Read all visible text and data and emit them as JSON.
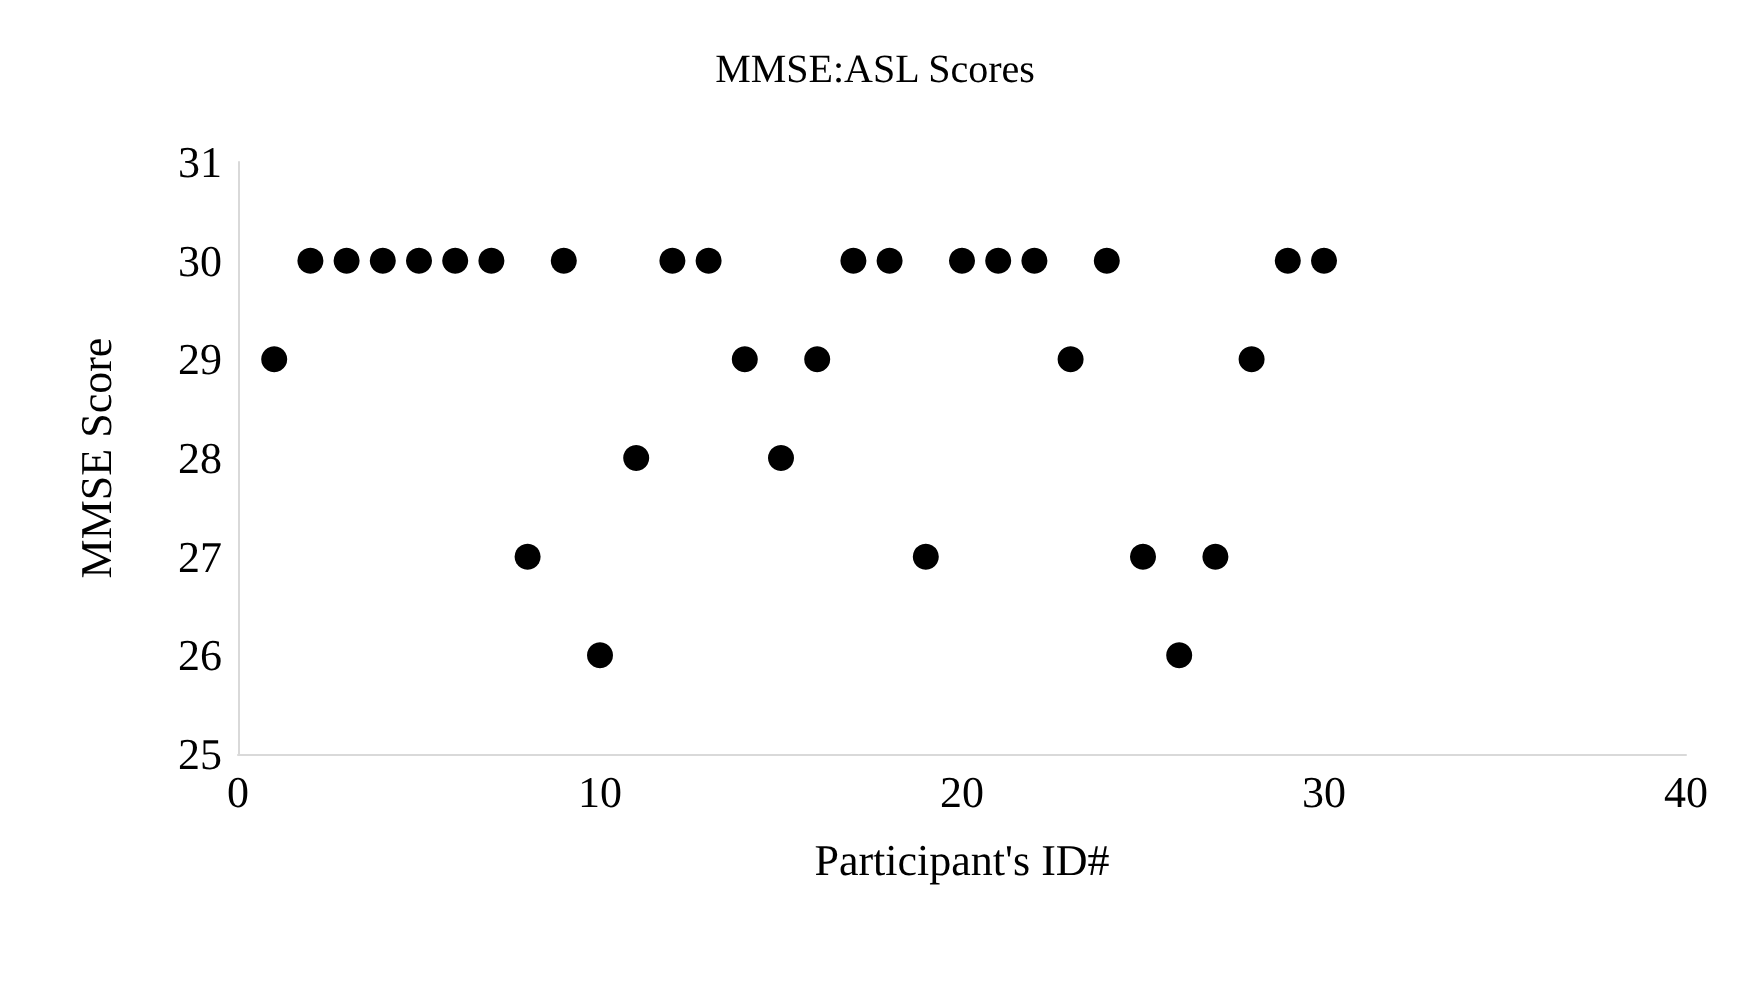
{
  "chart_data": {
    "type": "scatter",
    "title": "MMSE:ASL Scores",
    "xlabel": "Participant's ID#",
    "ylabel": "MMSE Score",
    "x": [
      1,
      2,
      3,
      4,
      5,
      6,
      7,
      8,
      9,
      10,
      11,
      12,
      13,
      14,
      15,
      16,
      17,
      18,
      19,
      20,
      21,
      22,
      23,
      24,
      25,
      26,
      27,
      28,
      29,
      30
    ],
    "values": [
      29,
      30,
      30,
      30,
      30,
      30,
      30,
      27,
      30,
      26,
      28,
      30,
      30,
      29,
      28,
      29,
      30,
      30,
      27,
      30,
      30,
      30,
      29,
      30,
      27,
      26,
      27,
      29,
      30,
      30
    ],
    "color": "#000000",
    "marker": "circle",
    "xlim": [
      0,
      40
    ],
    "xticks": [
      0,
      10,
      20,
      30,
      40
    ],
    "ylim": [
      25,
      31
    ],
    "yticks": [
      25,
      26,
      27,
      28,
      29,
      30,
      31
    ],
    "grid": false
  }
}
